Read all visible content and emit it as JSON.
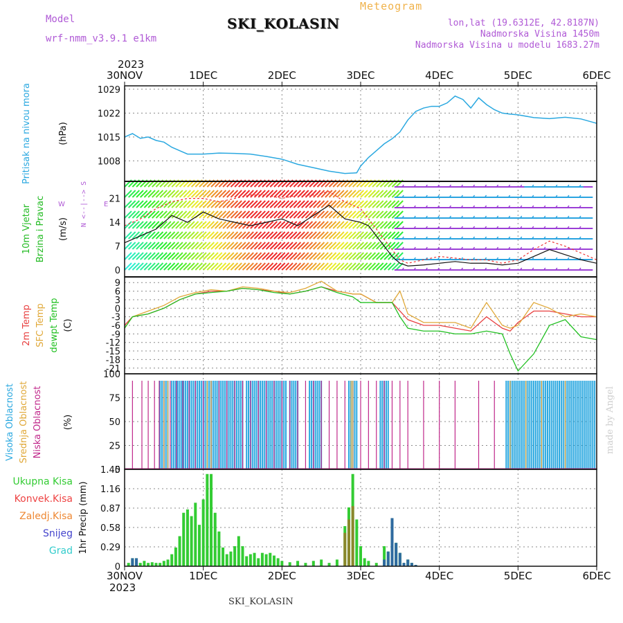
{
  "header": {
    "model_label": "Model",
    "model_name": "wrf-nmm_v3.9.1 e1km",
    "title": "SKI_KOLASIN",
    "meteogram": "Meteogram",
    "lonlat": "lon,lat (19.6312E, 42.8187N)",
    "altitude": "Nadmorska Visina 1450m",
    "model_altitude": "Nadmorska Visina u modelu 1683.27m",
    "year": "2023",
    "footer": "SKI_KOLASIN",
    "made_by": "made by Angel"
  },
  "colors": {
    "pressure": "#2aa8e0",
    "low_cloud": "#c0278a",
    "mid_cloud": "#e0a838",
    "high_cloud": "#2aa8e0",
    "temp2m": "#e84040",
    "sfc": "#e0a838",
    "dew": "#22c022",
    "precip_total": "#33cc33",
    "convective": "#ee4444",
    "frozen": "#ee8833",
    "snow": "#4444cc",
    "graupel": "#33cccc",
    "wind_label": "#22bb22",
    "purple": "#b05ad6"
  },
  "chart_data": [
    {
      "type": "line",
      "panel": "pressure",
      "ylabel": "Pritisak na nivou mora",
      "unit": "(hPa)",
      "x_ticks": [
        "30NOV",
        "1DEC",
        "2DEC",
        "3DEC",
        "4DEC",
        "5DEC",
        "6DEC"
      ],
      "yticks": [
        1008,
        1015,
        1022,
        1029
      ],
      "ylim": [
        1002,
        1030
      ],
      "x": [
        0,
        0.1,
        0.2,
        0.3,
        0.4,
        0.5,
        0.6,
        0.7,
        0.8,
        0.9,
        1.0,
        1.2,
        1.4,
        1.6,
        1.8,
        2.0,
        2.2,
        2.4,
        2.6,
        2.8,
        2.95,
        3.0,
        3.1,
        3.2,
        3.3,
        3.4,
        3.5,
        3.6,
        3.7,
        3.8,
        3.9,
        4.0,
        4.1,
        4.2,
        4.3,
        4.4,
        4.5,
        4.6,
        4.7,
        4.8,
        4.9,
        5.0,
        5.2,
        5.4,
        5.6,
        5.8,
        6.0
      ],
      "values": [
        1015,
        1016,
        1014.6,
        1015,
        1014,
        1013.5,
        1012,
        1011,
        1010,
        1010,
        1010,
        1010.3,
        1010.2,
        1010,
        1009.3,
        1008.5,
        1007,
        1006,
        1005,
        1004.3,
        1004.5,
        1006.5,
        1009,
        1011,
        1013,
        1014.5,
        1016.5,
        1020,
        1022.5,
        1023.5,
        1024,
        1024,
        1025,
        1027,
        1026,
        1023.5,
        1026.5,
        1024.5,
        1023,
        1022,
        1021.7,
        1021.5,
        1020.7,
        1020.4,
        1020.8,
        1020.3,
        1019
      ]
    },
    {
      "type": "line",
      "panel": "wind",
      "ylabel": "10m Vjetar Brzina i Pravac",
      "unit": "(m/s)",
      "compass": "W <--|--> E",
      "compass_top": "N",
      "compass_bottom": "S",
      "yticks": [
        0,
        7,
        14,
        21
      ],
      "ylim": [
        -2,
        26
      ],
      "x": [
        0,
        0.2,
        0.4,
        0.6,
        0.8,
        1.0,
        1.2,
        1.4,
        1.6,
        1.8,
        2.0,
        2.2,
        2.4,
        2.6,
        2.8,
        3.0,
        3.1,
        3.2,
        3.3,
        3.4,
        3.5,
        3.6,
        3.8,
        4.0,
        4.2,
        4.4,
        4.6,
        4.8,
        5.0,
        5.2,
        5.4,
        5.6,
        5.8,
        6.0
      ],
      "series": [
        {
          "name": "",
          "values": [
            8,
            10,
            12,
            16,
            14,
            17,
            15,
            14,
            13,
            14,
            15,
            13,
            16,
            19,
            15,
            14,
            13,
            10,
            7,
            4,
            2,
            1.2,
            1.5,
            2,
            2.5,
            2,
            2,
            1.5,
            2,
            4,
            6,
            4.5,
            3,
            2
          ]
        },
        {
          "name": "",
          "values": [
            13,
            15,
            18,
            20,
            21,
            21,
            20,
            21,
            22,
            22,
            21,
            22,
            22,
            23,
            20,
            18,
            15,
            12,
            9,
            6,
            3,
            2,
            3,
            4,
            3.5,
            3,
            3,
            2,
            3,
            6,
            8.5,
            7,
            5,
            3
          ]
        }
      ]
    },
    {
      "type": "line",
      "panel": "temperature",
      "ylabels": [
        "2m Temp",
        "SFC Temp",
        "dewpt Temp"
      ],
      "unit": "(C)",
      "yticks": [
        9,
        6,
        3,
        0,
        -3,
        -6,
        -9,
        -12,
        -15,
        -18,
        -21
      ],
      "ylim": [
        -23,
        11
      ],
      "x": [
        0,
        0.1,
        0.3,
        0.5,
        0.7,
        0.9,
        1.1,
        1.3,
        1.5,
        1.7,
        1.9,
        2.1,
        2.3,
        2.5,
        2.7,
        2.9,
        3.0,
        3.2,
        3.4,
        3.5,
        3.6,
        3.8,
        4.0,
        4.2,
        4.4,
        4.6,
        4.8,
        4.9,
        5.0,
        5.2,
        5.4,
        5.6,
        5.8,
        6.0
      ],
      "series": [
        {
          "name": "2m Temp",
          "values": [
            -6,
            -3,
            -2,
            0,
            3,
            5,
            6,
            6,
            7,
            6.5,
            6,
            5,
            6,
            7.5,
            6,
            5,
            5,
            2,
            2,
            -1,
            -4,
            -6,
            -6,
            -7,
            -8,
            -3,
            -7,
            -8,
            -5,
            -1,
            -1,
            -2,
            -3,
            -3
          ]
        },
        {
          "name": "SFC Temp",
          "values": [
            -7,
            -3,
            -1,
            1,
            4,
            5.5,
            6.5,
            6,
            7.5,
            7,
            6,
            5.5,
            7,
            9.5,
            6,
            5,
            5,
            2,
            2,
            6,
            -2,
            -5,
            -5,
            -5,
            -7,
            2,
            -6,
            -7,
            -6,
            2,
            0,
            -3,
            -2,
            -3
          ]
        },
        {
          "name": "dewpt Temp",
          "values": [
            -7,
            -3,
            -2,
            0,
            3,
            5,
            5.5,
            6,
            7,
            6.5,
            5.5,
            5,
            6,
            7.5,
            5.5,
            4,
            2,
            2,
            2,
            -3,
            -7,
            -8,
            -8,
            -9,
            -9,
            -8,
            -9,
            -16,
            -22,
            -16,
            -6,
            -4,
            -10,
            -11
          ]
        }
      ]
    },
    {
      "type": "bar",
      "panel": "clouds",
      "ylabels": [
        "Visoka Oblacnost",
        "Srednja Oblacnost",
        "Niska Oblacnost"
      ],
      "unit": "(%)",
      "yticks": [
        0,
        25,
        50,
        75,
        100
      ],
      "ylim": [
        0,
        100
      ],
      "high_cloud_100_ranges": [
        [
          0.45,
          0.55
        ],
        [
          0.6,
          1.5
        ],
        [
          1.55,
          2.05
        ],
        [
          2.1,
          2.2
        ],
        [
          2.35,
          2.5
        ],
        [
          2.85,
          2.95
        ],
        [
          3.25,
          3.35
        ],
        [
          4.85,
          6.0
        ]
      ],
      "low_cloud_spikes": [
        0.1,
        0.22,
        0.3,
        0.38,
        0.44,
        0.5,
        0.58,
        0.66,
        0.74,
        0.82,
        0.9,
        1.0,
        1.1,
        1.2,
        1.3,
        1.4,
        1.5,
        1.6,
        1.7,
        1.8,
        1.9,
        2.0,
        2.1,
        2.2,
        2.3,
        2.4,
        2.5,
        2.6,
        2.7,
        2.8,
        2.9,
        3.0,
        3.1,
        3.2,
        3.3,
        3.4,
        3.5,
        3.6,
        3.8,
        4.0,
        4.2,
        4.5,
        4.7
      ]
    },
    {
      "type": "bar",
      "panel": "precip",
      "legend": [
        "Ukupna Kisa",
        "Konvek.Kisa",
        "Zaledj.Kisa",
        "Snijeg",
        "Grad"
      ],
      "ylabel": "1hr Precip (mm)",
      "yticks": [
        0,
        0.29,
        0.58,
        0.87,
        1.16,
        1.45
      ],
      "ylim": [
        0,
        1.45
      ],
      "x": [
        0.05,
        0.1,
        0.15,
        0.2,
        0.25,
        0.3,
        0.35,
        0.4,
        0.45,
        0.5,
        0.55,
        0.6,
        0.65,
        0.7,
        0.75,
        0.8,
        0.85,
        0.9,
        0.95,
        1.0,
        1.05,
        1.1,
        1.15,
        1.2,
        1.25,
        1.3,
        1.35,
        1.4,
        1.45,
        1.5,
        1.55,
        1.6,
        1.65,
        1.7,
        1.75,
        1.8,
        1.85,
        1.9,
        1.95,
        2.0,
        2.1,
        2.2,
        2.3,
        2.4,
        2.5,
        2.6,
        2.7,
        2.8,
        2.85,
        2.9,
        2.95,
        3.0,
        3.05,
        3.1,
        3.2,
        3.3,
        3.35,
        3.4,
        3.45,
        3.5,
        3.55,
        3.6,
        3.65,
        3.7
      ],
      "values": [
        0.05,
        0.12,
        0.12,
        0.05,
        0.08,
        0.05,
        0.06,
        0.05,
        0.05,
        0.08,
        0.1,
        0.18,
        0.28,
        0.45,
        0.8,
        0.85,
        0.75,
        0.95,
        0.62,
        1.0,
        1.38,
        1.38,
        0.8,
        0.52,
        0.28,
        0.18,
        0.22,
        0.3,
        0.45,
        0.3,
        0.15,
        0.18,
        0.2,
        0.12,
        0.2,
        0.18,
        0.2,
        0.16,
        0.12,
        0.08,
        0.06,
        0.08,
        0.05,
        0.08,
        0.1,
        0.05,
        0.1,
        0.6,
        0.88,
        1.38,
        0.7,
        0.3,
        0.12,
        0.08,
        0.05,
        0.3,
        0.22,
        0.72,
        0.35,
        0.2,
        0.05,
        0.1,
        0.05,
        0.02
      ],
      "snow": [
        0,
        0.12,
        0.12,
        0,
        0,
        0,
        0,
        0,
        0,
        0,
        0,
        0,
        0,
        0,
        0,
        0,
        0,
        0,
        0,
        0,
        0,
        0,
        0,
        0,
        0,
        0,
        0,
        0,
        0,
        0,
        0,
        0,
        0,
        0,
        0,
        0,
        0,
        0,
        0,
        0,
        0,
        0,
        0,
        0,
        0,
        0,
        0,
        0,
        0,
        0,
        0,
        0,
        0,
        0,
        0,
        0.1,
        0.22,
        0.72,
        0.35,
        0.2,
        0.05,
        0.1,
        0.05,
        0.02
      ],
      "frozen": [
        0,
        0,
        0,
        0,
        0,
        0,
        0,
        0,
        0,
        0,
        0,
        0,
        0,
        0,
        0,
        0,
        0,
        0,
        0,
        0,
        0,
        0,
        0,
        0,
        0,
        0,
        0,
        0,
        0,
        0,
        0,
        0,
        0,
        0,
        0,
        0,
        0,
        0,
        0,
        0,
        0,
        0,
        0,
        0,
        0,
        0,
        0,
        0.5,
        0.7,
        0.9,
        0,
        0,
        0,
        0,
        0,
        0,
        0,
        0,
        0,
        0,
        0,
        0,
        0,
        0
      ]
    }
  ]
}
